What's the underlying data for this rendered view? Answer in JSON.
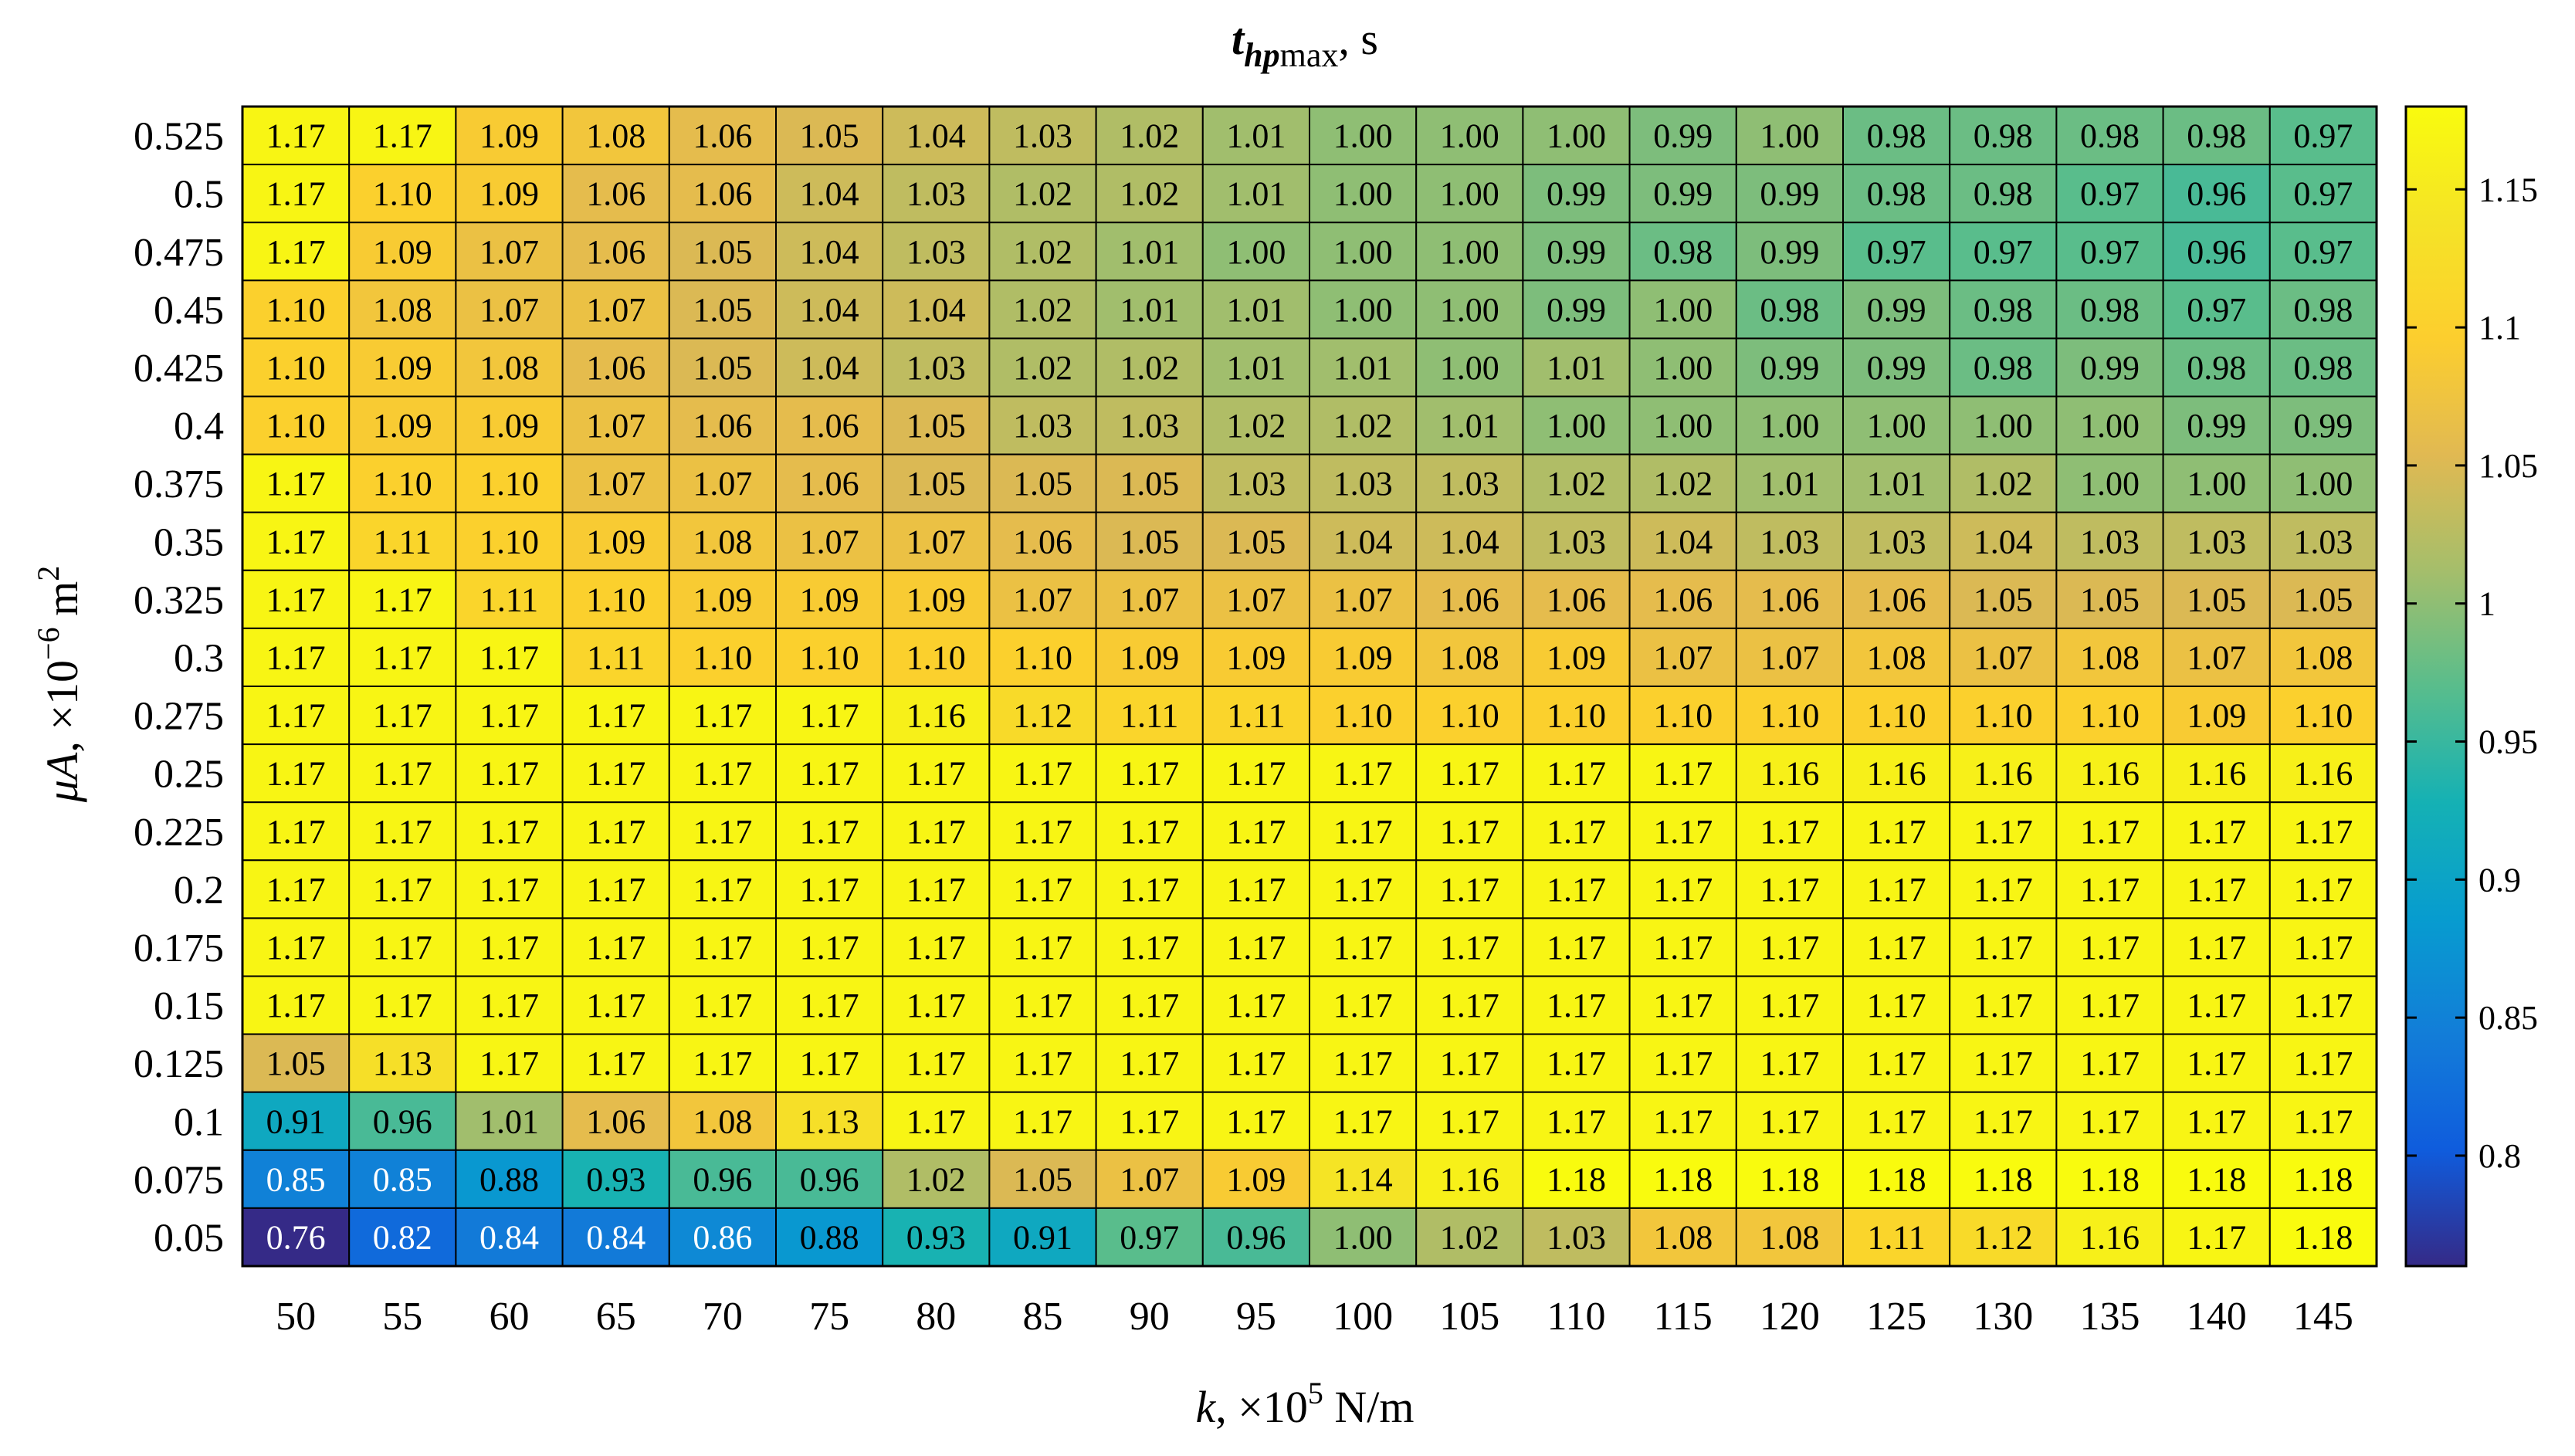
{
  "chart_data": {
    "type": "heatmap",
    "title": {
      "var": "t",
      "sub": "hp",
      "subtail": "max",
      "sep": ", ",
      "unit": "s"
    },
    "xlabel": {
      "var": "k",
      "pre": ", ×10",
      "exp": "5",
      "unit": " N/m"
    },
    "ylabel": {
      "var": "μA",
      "pre": ", ×10",
      "exp": "−6",
      "unit": " m",
      "unit_exp": "2"
    },
    "x_ticks": [
      "50",
      "55",
      "60",
      "65",
      "70",
      "75",
      "80",
      "85",
      "90",
      "95",
      "100",
      "105",
      "110",
      "115",
      "120",
      "125",
      "130",
      "135",
      "140",
      "145"
    ],
    "y_ticks": [
      "0.525",
      "0.5",
      "0.475",
      "0.45",
      "0.425",
      "0.4",
      "0.375",
      "0.35",
      "0.325",
      "0.3",
      "0.275",
      "0.25",
      "0.225",
      "0.2",
      "0.175",
      "0.15",
      "0.125",
      "0.1",
      "0.075",
      "0.05"
    ],
    "values": [
      [
        "1.17",
        "1.17",
        "1.09",
        "1.08",
        "1.06",
        "1.05",
        "1.04",
        "1.03",
        "1.02",
        "1.01",
        "1.00",
        "1.00",
        "1.00",
        "0.99",
        "1.00",
        "0.98",
        "0.98",
        "0.98",
        "0.98",
        "0.97"
      ],
      [
        "1.17",
        "1.10",
        "1.09",
        "1.06",
        "1.06",
        "1.04",
        "1.03",
        "1.02",
        "1.02",
        "1.01",
        "1.00",
        "1.00",
        "0.99",
        "0.99",
        "0.99",
        "0.98",
        "0.98",
        "0.97",
        "0.96",
        "0.97"
      ],
      [
        "1.17",
        "1.09",
        "1.07",
        "1.06",
        "1.05",
        "1.04",
        "1.03",
        "1.02",
        "1.01",
        "1.00",
        "1.00",
        "1.00",
        "0.99",
        "0.98",
        "0.99",
        "0.97",
        "0.97",
        "0.97",
        "0.96",
        "0.97"
      ],
      [
        "1.10",
        "1.08",
        "1.07",
        "1.07",
        "1.05",
        "1.04",
        "1.04",
        "1.02",
        "1.01",
        "1.01",
        "1.00",
        "1.00",
        "0.99",
        "1.00",
        "0.98",
        "0.99",
        "0.98",
        "0.98",
        "0.97",
        "0.98"
      ],
      [
        "1.10",
        "1.09",
        "1.08",
        "1.06",
        "1.05",
        "1.04",
        "1.03",
        "1.02",
        "1.02",
        "1.01",
        "1.01",
        "1.00",
        "1.01",
        "1.00",
        "0.99",
        "0.99",
        "0.98",
        "0.99",
        "0.98",
        "0.98"
      ],
      [
        "1.10",
        "1.09",
        "1.09",
        "1.07",
        "1.06",
        "1.06",
        "1.05",
        "1.03",
        "1.03",
        "1.02",
        "1.02",
        "1.01",
        "1.00",
        "1.00",
        "1.00",
        "1.00",
        "1.00",
        "1.00",
        "0.99",
        "0.99"
      ],
      [
        "1.17",
        "1.10",
        "1.10",
        "1.07",
        "1.07",
        "1.06",
        "1.05",
        "1.05",
        "1.05",
        "1.03",
        "1.03",
        "1.03",
        "1.02",
        "1.02",
        "1.01",
        "1.01",
        "1.02",
        "1.00",
        "1.00",
        "1.00"
      ],
      [
        "1.17",
        "1.11",
        "1.10",
        "1.09",
        "1.08",
        "1.07",
        "1.07",
        "1.06",
        "1.05",
        "1.05",
        "1.04",
        "1.04",
        "1.03",
        "1.04",
        "1.03",
        "1.03",
        "1.04",
        "1.03",
        "1.03",
        "1.03"
      ],
      [
        "1.17",
        "1.17",
        "1.11",
        "1.10",
        "1.09",
        "1.09",
        "1.09",
        "1.07",
        "1.07",
        "1.07",
        "1.07",
        "1.06",
        "1.06",
        "1.06",
        "1.06",
        "1.06",
        "1.05",
        "1.05",
        "1.05",
        "1.05"
      ],
      [
        "1.17",
        "1.17",
        "1.17",
        "1.11",
        "1.10",
        "1.10",
        "1.10",
        "1.10",
        "1.09",
        "1.09",
        "1.09",
        "1.08",
        "1.09",
        "1.07",
        "1.07",
        "1.08",
        "1.07",
        "1.08",
        "1.07",
        "1.08"
      ],
      [
        "1.17",
        "1.17",
        "1.17",
        "1.17",
        "1.17",
        "1.17",
        "1.16",
        "1.12",
        "1.11",
        "1.11",
        "1.10",
        "1.10",
        "1.10",
        "1.10",
        "1.10",
        "1.10",
        "1.10",
        "1.10",
        "1.09",
        "1.10"
      ],
      [
        "1.17",
        "1.17",
        "1.17",
        "1.17",
        "1.17",
        "1.17",
        "1.17",
        "1.17",
        "1.17",
        "1.17",
        "1.17",
        "1.17",
        "1.17",
        "1.17",
        "1.16",
        "1.16",
        "1.16",
        "1.16",
        "1.16",
        "1.16"
      ],
      [
        "1.17",
        "1.17",
        "1.17",
        "1.17",
        "1.17",
        "1.17",
        "1.17",
        "1.17",
        "1.17",
        "1.17",
        "1.17",
        "1.17",
        "1.17",
        "1.17",
        "1.17",
        "1.17",
        "1.17",
        "1.17",
        "1.17",
        "1.17"
      ],
      [
        "1.17",
        "1.17",
        "1.17",
        "1.17",
        "1.17",
        "1.17",
        "1.17",
        "1.17",
        "1.17",
        "1.17",
        "1.17",
        "1.17",
        "1.17",
        "1.17",
        "1.17",
        "1.17",
        "1.17",
        "1.17",
        "1.17",
        "1.17"
      ],
      [
        "1.17",
        "1.17",
        "1.17",
        "1.17",
        "1.17",
        "1.17",
        "1.17",
        "1.17",
        "1.17",
        "1.17",
        "1.17",
        "1.17",
        "1.17",
        "1.17",
        "1.17",
        "1.17",
        "1.17",
        "1.17",
        "1.17",
        "1.17"
      ],
      [
        "1.17",
        "1.17",
        "1.17",
        "1.17",
        "1.17",
        "1.17",
        "1.17",
        "1.17",
        "1.17",
        "1.17",
        "1.17",
        "1.17",
        "1.17",
        "1.17",
        "1.17",
        "1.17",
        "1.17",
        "1.17",
        "1.17",
        "1.17"
      ],
      [
        "1.05",
        "1.13",
        "1.17",
        "1.17",
        "1.17",
        "1.17",
        "1.17",
        "1.17",
        "1.17",
        "1.17",
        "1.17",
        "1.17",
        "1.17",
        "1.17",
        "1.17",
        "1.17",
        "1.17",
        "1.17",
        "1.17",
        "1.17"
      ],
      [
        "0.91",
        "0.96",
        "1.01",
        "1.06",
        "1.08",
        "1.13",
        "1.17",
        "1.17",
        "1.17",
        "1.17",
        "1.17",
        "1.17",
        "1.17",
        "1.17",
        "1.17",
        "1.17",
        "1.17",
        "1.17",
        "1.17",
        "1.17"
      ],
      [
        "0.85",
        "0.85",
        "0.88",
        "0.93",
        "0.96",
        "0.96",
        "1.02",
        "1.05",
        "1.07",
        "1.09",
        "1.14",
        "1.16",
        "1.18",
        "1.18",
        "1.18",
        "1.18",
        "1.18",
        "1.18",
        "1.18",
        "1.18"
      ],
      [
        "0.76",
        "0.82",
        "0.84",
        "0.84",
        "0.86",
        "0.88",
        "0.93",
        "0.91",
        "0.97",
        "0.96",
        "1.00",
        "1.02",
        "1.03",
        "1.08",
        "1.08",
        "1.11",
        "1.12",
        "1.16",
        "1.17",
        "1.18"
      ]
    ],
    "colorbar": {
      "ticks": [
        "0.8",
        "0.85",
        "0.9",
        "0.95",
        "1",
        "1.05",
        "1.1",
        "1.15"
      ],
      "range": [
        0.76,
        1.18
      ],
      "colormap": "parula"
    },
    "grid": false
  }
}
